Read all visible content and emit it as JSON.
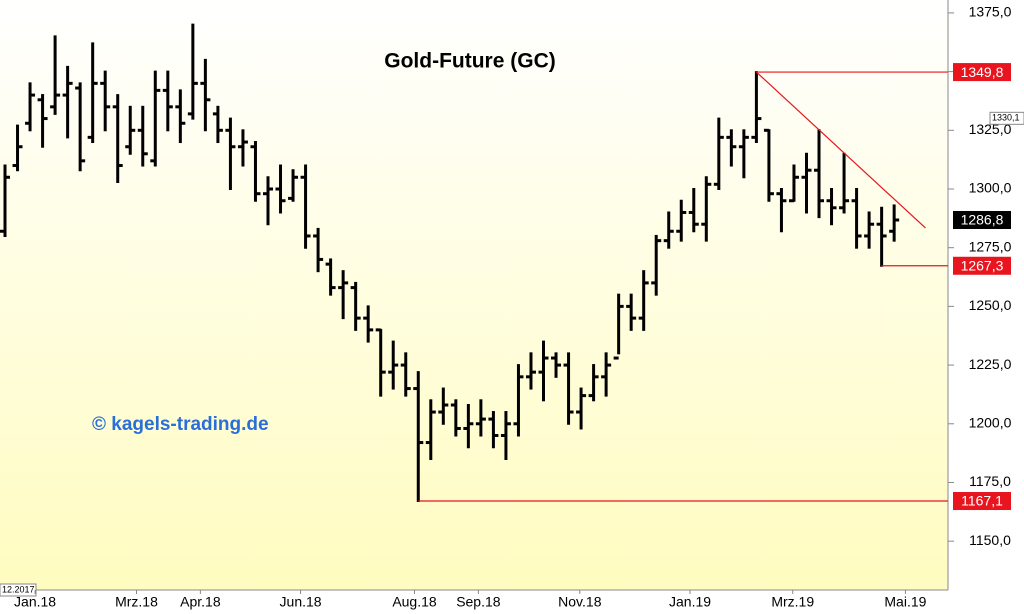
{
  "chart_data": {
    "type": "ohlc",
    "title": "Gold-Future (GC)",
    "watermark": "© kagels-trading.de",
    "start_label": "12.2017",
    "color": "#000000",
    "line_color": "#e8141e",
    "open": [
      1282,
      1310,
      1328,
      1338,
      1335,
      1340,
      1343,
      1322,
      1345,
      1335,
      1318,
      1325,
      1312,
      1342,
      1335,
      1332,
      1345,
      1332,
      1325,
      1318,
      1318,
      1298,
      1300,
      1296,
      1305,
      1280,
      1268,
      1258,
      1258,
      1245,
      1240,
      1222,
      1225,
      1215,
      1192,
      1205,
      1208,
      1198,
      1200,
      1202,
      1195,
      1200,
      1220,
      1222,
      1228,
      1225,
      1205,
      1212,
      1220,
      1228,
      1250,
      1245,
      1260,
      1278,
      1282,
      1290,
      1285,
      1302,
      1322,
      1318,
      1322,
      1325,
      1298,
      1295,
      1305,
      1308,
      1295,
      1292,
      1295,
      1280,
      1285,
      1282
    ],
    "high": [
      1310,
      1327,
      1345,
      1340,
      1365,
      1352,
      1345,
      1362,
      1350,
      1340,
      1335,
      1335,
      1350,
      1350,
      1342,
      1370,
      1355,
      1335,
      1330,
      1325,
      1320,
      1305,
      1310,
      1308,
      1310,
      1283,
      1270,
      1265,
      1260,
      1250,
      1240,
      1235,
      1230,
      1222,
      1210,
      1215,
      1210,
      1208,
      1210,
      1205,
      1205,
      1225,
      1230,
      1235,
      1230,
      1230,
      1215,
      1225,
      1230,
      1255,
      1255,
      1265,
      1280,
      1290,
      1295,
      1300,
      1305,
      1330,
      1325,
      1325,
      1349.8,
      1325,
      1300,
      1310,
      1315,
      1325,
      1300,
      1315,
      1300,
      1290,
      1292,
      1293
    ],
    "low": [
      1280,
      1308,
      1325,
      1318,
      1332,
      1322,
      1308,
      1320,
      1325,
      1303,
      1315,
      1310,
      1310,
      1325,
      1320,
      1330,
      1325,
      1320,
      1300,
      1310,
      1295,
      1285,
      1290,
      1295,
      1275,
      1265,
      1255,
      1245,
      1240,
      1235,
      1212,
      1215,
      1212,
      1167.1,
      1185,
      1200,
      1195,
      1190,
      1195,
      1190,
      1185,
      1195,
      1215,
      1210,
      1220,
      1200,
      1198,
      1210,
      1212,
      1230,
      1240,
      1240,
      1255,
      1275,
      1278,
      1282,
      1278,
      1300,
      1310,
      1305,
      1320,
      1295,
      1282,
      1295,
      1290,
      1288,
      1285,
      1290,
      1275,
      1275,
      1267.3,
      1278
    ],
    "close": [
      1305,
      1318,
      1340,
      1330,
      1340,
      1345,
      1312,
      1345,
      1335,
      1310,
      1325,
      1315,
      1342,
      1335,
      1328,
      1345,
      1338,
      1325,
      1318,
      1320,
      1298,
      1300,
      1295,
      1305,
      1280,
      1270,
      1258,
      1260,
      1245,
      1240,
      1222,
      1225,
      1215,
      1192,
      1205,
      1208,
      1198,
      1200,
      1202,
      1195,
      1200,
      1220,
      1222,
      1228,
      1225,
      1205,
      1212,
      1220,
      1225,
      1250,
      1245,
      1260,
      1278,
      1282,
      1290,
      1285,
      1302,
      1322,
      1318,
      1322,
      1330,
      1298,
      1295,
      1305,
      1308,
      1295,
      1292,
      1295,
      1280,
      1285,
      1280,
      1286.8
    ],
    "xlim": [
      -0.4,
      75.3
    ],
    "xticks": [
      {
        "value": 2.4,
        "label": "Jan.18"
      },
      {
        "value": 10.5,
        "label": "Mrz.18"
      },
      {
        "value": 15.6,
        "label": "Apr.18"
      },
      {
        "value": 23.6,
        "label": "Jun.18"
      },
      {
        "value": 32.7,
        "label": "Aug.18"
      },
      {
        "value": 37.8,
        "label": "Sep.18"
      },
      {
        "value": 45.9,
        "label": "Nov.18"
      },
      {
        "value": 54.7,
        "label": "Jan.19"
      },
      {
        "value": 62.9,
        "label": "Mrz.19"
      },
      {
        "value": 71.9,
        "label": "Mai.19"
      }
    ],
    "ylim": [
      1129.2,
      1380.5
    ],
    "yticks": [
      {
        "value": 1150,
        "label": "1150,0"
      },
      {
        "value": 1175,
        "label": "1175,0"
      },
      {
        "value": 1200,
        "label": "1200,0"
      },
      {
        "value": 1225,
        "label": "1225,0"
      },
      {
        "value": 1250,
        "label": "1250,0"
      },
      {
        "value": 1275,
        "label": "1275,0"
      },
      {
        "value": 1300,
        "label": "1300,0"
      },
      {
        "value": 1325,
        "label": "1325,0"
      },
      {
        "value": 1350,
        "label": "1350,0"
      },
      {
        "value": 1375,
        "label": "1375,0"
      }
    ],
    "levels": [
      {
        "value": 1349.8,
        "label": "1349,8",
        "from": 60
      },
      {
        "value": 1267.3,
        "label": "1267,3",
        "from": 70
      },
      {
        "value": 1167.1,
        "label": "1167,1",
        "from": 33
      }
    ],
    "trendline": {
      "x": [
        60,
        73.5
      ],
      "y": [
        1349.8,
        1283.4
      ]
    },
    "last": {
      "value": 1286.8,
      "label": "1286,8"
    },
    "marker": {
      "value": 1330.1,
      "label": "1330,1"
    }
  }
}
